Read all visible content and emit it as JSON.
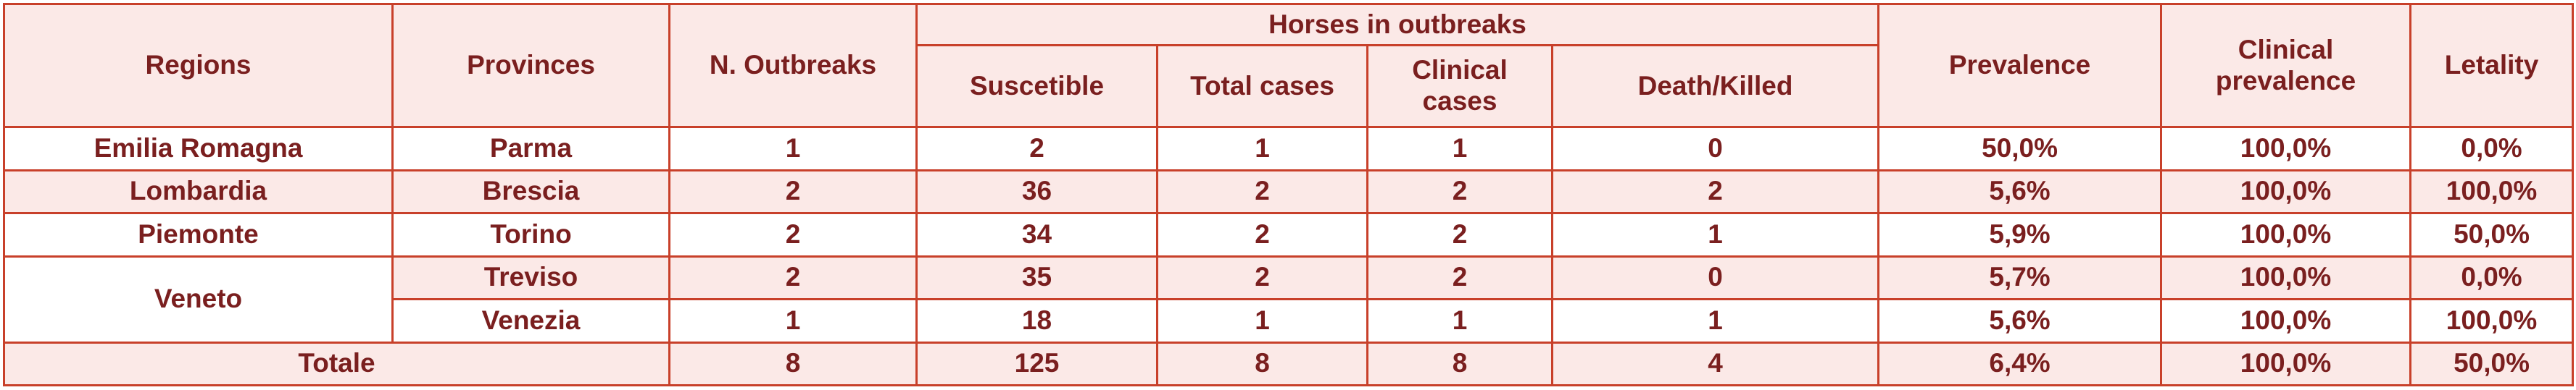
{
  "header": {
    "regions": "Regions",
    "provinces": "Provinces",
    "n_outbreaks": "N. Outbreaks",
    "horses_group": "Horses in outbreaks",
    "suscetible": "Suscetible",
    "total_cases": "Total cases",
    "clinical_cases": "Clinical cases",
    "death_killed": "Death/Killed",
    "prevalence": "Prevalence",
    "clinical_prevalence_l1": "Clinical",
    "clinical_prevalence_l2": "prevalence",
    "letality": "Letality"
  },
  "rows": [
    {
      "region": "Emilia Romagna",
      "province": "Parma",
      "outbreaks": "1",
      "suscetible": "2",
      "total": "1",
      "clinical": "1",
      "death": "0",
      "prevalence": "50,0%",
      "clinical_prevalence": "100,0%",
      "letality": "0,0%"
    },
    {
      "region": "Lombardia",
      "province": "Brescia",
      "outbreaks": "2",
      "suscetible": "36",
      "total": "2",
      "clinical": "2",
      "death": "2",
      "prevalence": "5,6%",
      "clinical_prevalence": "100,0%",
      "letality": "100,0%"
    },
    {
      "region": "Piemonte",
      "province": "Torino",
      "outbreaks": "2",
      "suscetible": "34",
      "total": "2",
      "clinical": "2",
      "death": "1",
      "prevalence": "5,9%",
      "clinical_prevalence": "100,0%",
      "letality": "50,0%"
    },
    {
      "region": "Veneto",
      "province": "Treviso",
      "outbreaks": "2",
      "suscetible": "35",
      "total": "2",
      "clinical": "2",
      "death": "0",
      "prevalence": "5,7%",
      "clinical_prevalence": "100,0%",
      "letality": "0,0%"
    },
    {
      "region": "",
      "province": "Venezia",
      "outbreaks": "1",
      "suscetible": "18",
      "total": "1",
      "clinical": "1",
      "death": "1",
      "prevalence": "5,6%",
      "clinical_prevalence": "100,0%",
      "letality": "100,0%"
    }
  ],
  "total": {
    "label": "Totale",
    "outbreaks": "8",
    "suscetible": "125",
    "total": "8",
    "clinical": "8",
    "death": "4",
    "prevalence": "6,4%",
    "clinical_prevalence": "100,0%",
    "letality": "50,0%"
  }
}
